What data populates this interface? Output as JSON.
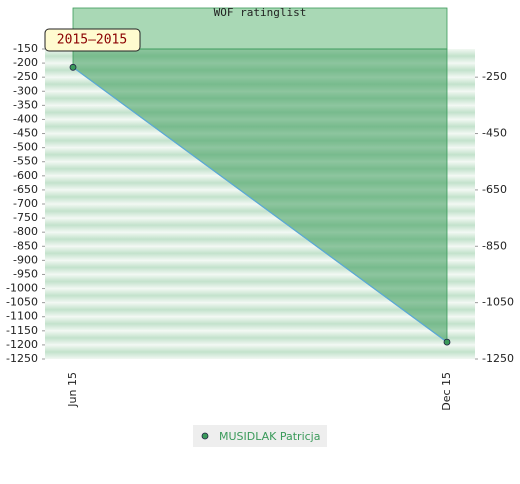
{
  "chart_data": {
    "type": "line",
    "title": "WOF ratinglist",
    "subtitle": "2015–2015",
    "categories": [
      "Jun 15",
      "Dec 15"
    ],
    "series": [
      {
        "name": "MUSIDLAK Patricja",
        "color": "#3a9a5a",
        "values": [
          -215,
          -1190
        ]
      }
    ],
    "ylim": [
      -1250,
      -150
    ],
    "y_reversed": true,
    "yticks": [
      -150,
      -200,
      -250,
      -300,
      -350,
      -400,
      -450,
      -500,
      -550,
      -600,
      -650,
      -700,
      -750,
      -800,
      -850,
      -900,
      -950,
      -1000,
      -1050,
      -1100,
      -1150,
      -1200,
      -1250
    ],
    "y2lim": [
      -1250,
      -150
    ],
    "y2ticks": [
      -250,
      -450,
      -650,
      -850,
      -1050,
      -1250
    ]
  }
}
